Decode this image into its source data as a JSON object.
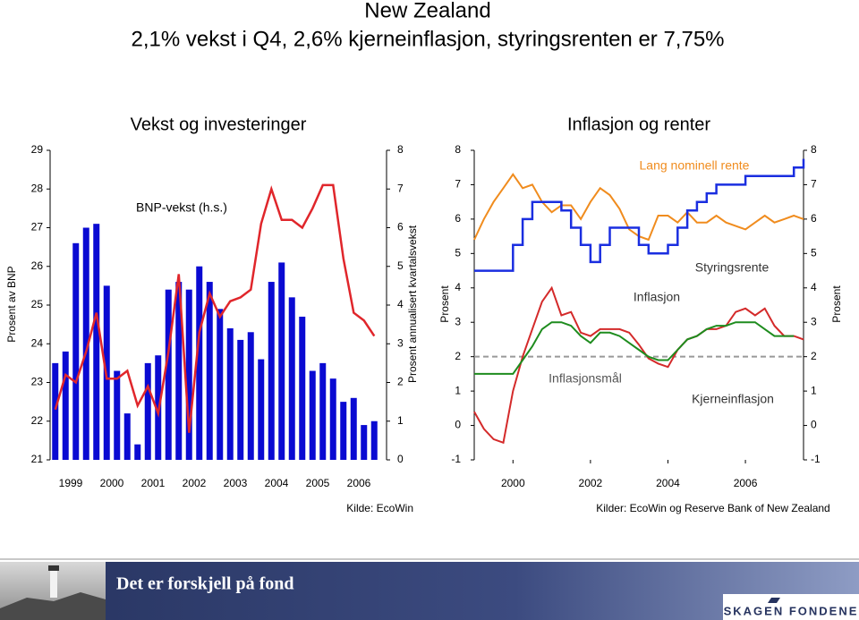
{
  "title": "New Zealand",
  "subtitle": "2,1% vekst i Q4, 2,6% kjerneinflasjon, styringsrenten er 7,75%",
  "chart_data": [
    {
      "type": "bar",
      "title": "Vekst og investeringer",
      "y_label": "Prosent av BNP",
      "y2_label": "Prosent annualisert kvartalsvekst",
      "source": "Kilde: EcoWin",
      "categories": [
        "1999",
        null,
        null,
        null,
        "2000",
        null,
        null,
        null,
        "2001",
        null,
        null,
        null,
        "2002",
        null,
        null,
        null,
        "2003",
        null,
        null,
        null,
        "2004",
        null,
        null,
        null,
        "2005",
        null,
        null,
        null,
        "2006",
        null,
        null,
        null
      ],
      "series": [
        {
          "type": "bar",
          "color": "#0a0ad2",
          "values": [
            23.5,
            23.8,
            26.6,
            27.0,
            27.1,
            25.5,
            23.3,
            22.2,
            21.4,
            23.5,
            23.7,
            25.4,
            25.6,
            25.4,
            26.0,
            25.6,
            24.9,
            24.4,
            24.1,
            24.3,
            23.6,
            25.6,
            26.1,
            25.2,
            24.7,
            23.3,
            23.5,
            23.1,
            22.5,
            22.6,
            21.9,
            22.0
          ]
        },
        {
          "type": "line",
          "name": "BNP-vekst (h.s.)",
          "color": "#e0262b",
          "axis": "y2",
          "values": [
            1.3,
            2.2,
            2.0,
            2.8,
            3.8,
            2.1,
            2.1,
            2.3,
            1.4,
            1.9,
            1.2,
            2.8,
            4.8,
            0.7,
            3.3,
            4.3,
            3.7,
            4.1,
            4.2,
            4.4,
            6.1,
            7.0,
            6.2,
            6.2,
            6.0,
            6.5,
            7.1,
            7.1,
            5.2,
            3.8,
            3.6,
            3.2
          ]
        }
      ],
      "ylim": [
        21,
        29
      ],
      "yticks": [
        21,
        22,
        23,
        24,
        25,
        26,
        27,
        28,
        29
      ],
      "y2lim": [
        0,
        8
      ],
      "y2ticks": [
        0,
        1,
        2,
        3,
        4,
        5,
        6,
        7,
        8
      ]
    },
    {
      "type": "line",
      "title": "Inflasjon og renter",
      "y_label": "Prosent",
      "y2_label": "Prosent",
      "source": "Kilder: EcoWin og Reserve Bank of New Zealand",
      "x": [
        1999,
        1999.25,
        1999.5,
        1999.75,
        2000,
        2000.25,
        2000.5,
        2000.75,
        2001,
        2001.25,
        2001.5,
        2001.75,
        2002,
        2002.25,
        2002.5,
        2002.75,
        2003,
        2003.25,
        2003.5,
        2003.75,
        2004,
        2004.25,
        2004.5,
        2004.75,
        2005,
        2005.25,
        2005.5,
        2005.75,
        2006,
        2006.25,
        2006.5,
        2006.75,
        2007,
        2007.25,
        2007.5
      ],
      "series": [
        {
          "name": "Lang nominell rente",
          "color": "#f08c1e",
          "values": [
            5.4,
            6.0,
            6.5,
            6.9,
            7.3,
            6.9,
            7.0,
            6.5,
            6.2,
            6.4,
            6.4,
            6.0,
            6.5,
            6.9,
            6.7,
            6.3,
            5.7,
            5.5,
            5.4,
            6.1,
            6.1,
            5.9,
            6.2,
            5.9,
            5.9,
            6.1,
            5.9,
            5.8,
            5.7,
            5.9,
            6.1,
            5.9,
            6.0,
            6.1,
            6.0
          ]
        },
        {
          "name": "Styringsrente",
          "color": "#1a2ee0",
          "step": true,
          "values": [
            4.5,
            4.5,
            4.5,
            4.5,
            5.25,
            6.0,
            6.5,
            6.5,
            6.5,
            6.25,
            5.75,
            5.25,
            4.75,
            5.25,
            5.75,
            5.75,
            5.75,
            5.25,
            5.0,
            5.0,
            5.25,
            5.75,
            6.25,
            6.5,
            6.75,
            7.0,
            7.0,
            7.0,
            7.25,
            7.25,
            7.25,
            7.25,
            7.25,
            7.5,
            7.75
          ]
        },
        {
          "name": "Inflasjon",
          "color": "#d42a2a",
          "values": [
            0.4,
            -0.1,
            -0.4,
            -0.5,
            1.0,
            2.0,
            2.8,
            3.6,
            4.0,
            3.2,
            3.3,
            2.7,
            2.6,
            2.8,
            2.8,
            2.8,
            2.7,
            2.35,
            1.95,
            1.8,
            1.7,
            2.2,
            2.5,
            2.6,
            2.8,
            2.8,
            2.9,
            3.3,
            3.4,
            3.2,
            3.4,
            2.9,
            2.6,
            2.6,
            2.5
          ]
        },
        {
          "name": "Kjerneinflasjon",
          "color": "#1e8c1e",
          "values": [
            1.5,
            1.5,
            1.5,
            1.5,
            1.5,
            1.9,
            2.3,
            2.8,
            3.0,
            3.0,
            2.9,
            2.6,
            2.4,
            2.7,
            2.7,
            2.6,
            2.4,
            2.2,
            2.0,
            1.9,
            1.9,
            2.2,
            2.5,
            2.6,
            2.8,
            2.9,
            2.9,
            3.0,
            3.0,
            3.0,
            2.8,
            2.6,
            2.6,
            2.6,
            null
          ]
        }
      ],
      "target": {
        "label": "Inflasjonsmål",
        "value": 2,
        "color": "#999999"
      },
      "xlim": [
        1999,
        2007.5
      ],
      "xticks": [
        2000,
        2002,
        2004,
        2006
      ],
      "ylim": [
        -1,
        8
      ],
      "yticks": [
        -1,
        0,
        1,
        2,
        3,
        4,
        5,
        6,
        7,
        8
      ],
      "y2lim": [
        -1,
        8
      ],
      "y2ticks": [
        -1,
        0,
        1,
        2,
        3,
        4,
        5,
        6,
        7,
        8
      ]
    }
  ],
  "footer": {
    "slogan": "Det er forskjell på fond",
    "logo": "SKAGEN FONDENE"
  }
}
